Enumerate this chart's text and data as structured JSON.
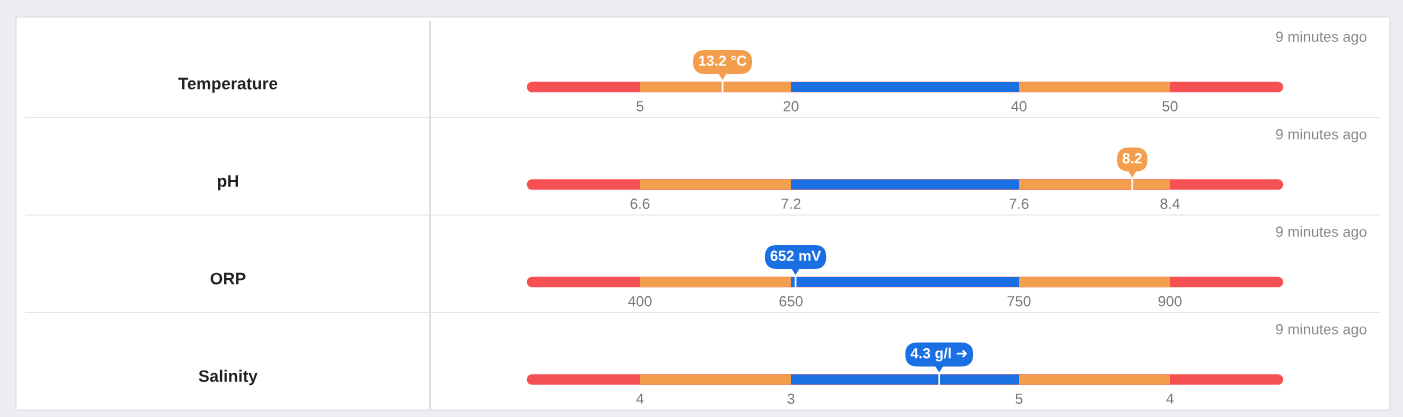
{
  "chart_data": [
    {
      "type": "other",
      "title": "Temperature",
      "values": [
        13.2
      ],
      "value_labels": [
        "13.2 °C"
      ],
      "colors": [
        "#f29e4c"
      ],
      "annotations": [
        "9 minutes ago",
        "5",
        "20",
        "40",
        "50"
      ]
    },
    {
      "type": "other",
      "title": "pH",
      "values": [
        8.2
      ],
      "value_labels": [
        "8.2"
      ],
      "colors": [
        "#f29e4c"
      ],
      "annotations": [
        "9 minutes ago",
        "6.6",
        "7.2",
        "7.6",
        "8.4"
      ]
    },
    {
      "type": "other",
      "title": "ORP",
      "values": [
        652
      ],
      "value_labels": [
        "652 mV"
      ],
      "colors": [
        "#1a6fe3"
      ],
      "annotations": [
        "9 minutes ago",
        "400",
        "650",
        "750",
        "900"
      ]
    },
    {
      "type": "other",
      "title": "Salinity",
      "values": [
        4.3
      ],
      "value_labels": [
        "4.3 g/l ➜"
      ],
      "colors": [
        "#1a6fe3"
      ],
      "annotations": [
        "9 minutes ago",
        "4",
        "3",
        "5",
        "4"
      ]
    }
  ]
}
